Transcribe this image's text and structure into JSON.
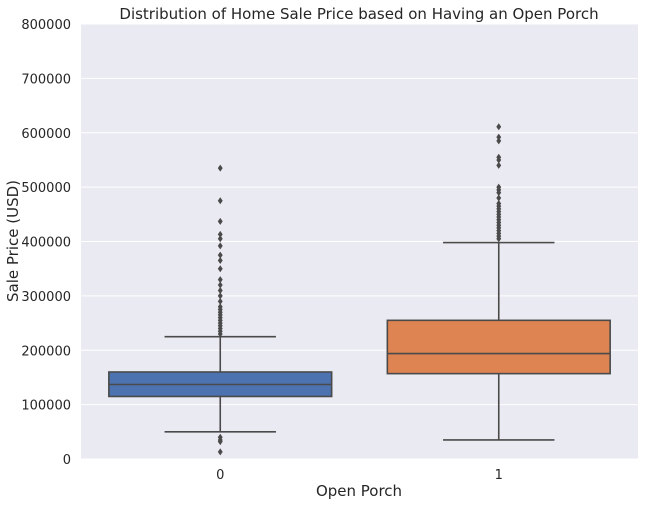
{
  "chart_data": {
    "type": "box",
    "title": "Distribution of Home Sale Price based on Having an Open Porch",
    "xlabel": "Open Porch",
    "ylabel": "Sale Price (USD)",
    "ylim": [
      0,
      800000
    ],
    "yticks": [
      "0",
      "100000",
      "200000",
      "300000",
      "400000",
      "500000",
      "600000",
      "700000",
      "800000"
    ],
    "grid": true,
    "categories": [
      "0",
      "1"
    ],
    "colors": {
      "background": "#eaeaf2",
      "line": "#4a4a4a",
      "grid": "#ffffff"
    },
    "boxes": [
      {
        "category": "0",
        "color": "#4c72b0",
        "whisker_low": 50000,
        "q1": 115000,
        "median": 137000,
        "q3": 160000,
        "whisker_high": 225000,
        "outliers": [
          13000,
          32000,
          35000,
          40000,
          230000,
          235000,
          240000,
          245000,
          250000,
          255000,
          260000,
          265000,
          270000,
          275000,
          280000,
          290000,
          300000,
          310000,
          320000,
          330000,
          350000,
          365000,
          375000,
          392000,
          405000,
          413000,
          437000,
          475000,
          535000
        ]
      },
      {
        "category": "1",
        "color": "#dd8452",
        "whisker_low": 35000,
        "q1": 157000,
        "median": 194000,
        "q3": 255000,
        "whisker_high": 398000,
        "outliers": [
          405000,
          410000,
          415000,
          420000,
          425000,
          430000,
          435000,
          440000,
          445000,
          450000,
          455000,
          460000,
          465000,
          470000,
          480000,
          490000,
          495000,
          500000,
          540000,
          550000,
          555000,
          585000,
          592000,
          611000
        ]
      }
    ]
  }
}
